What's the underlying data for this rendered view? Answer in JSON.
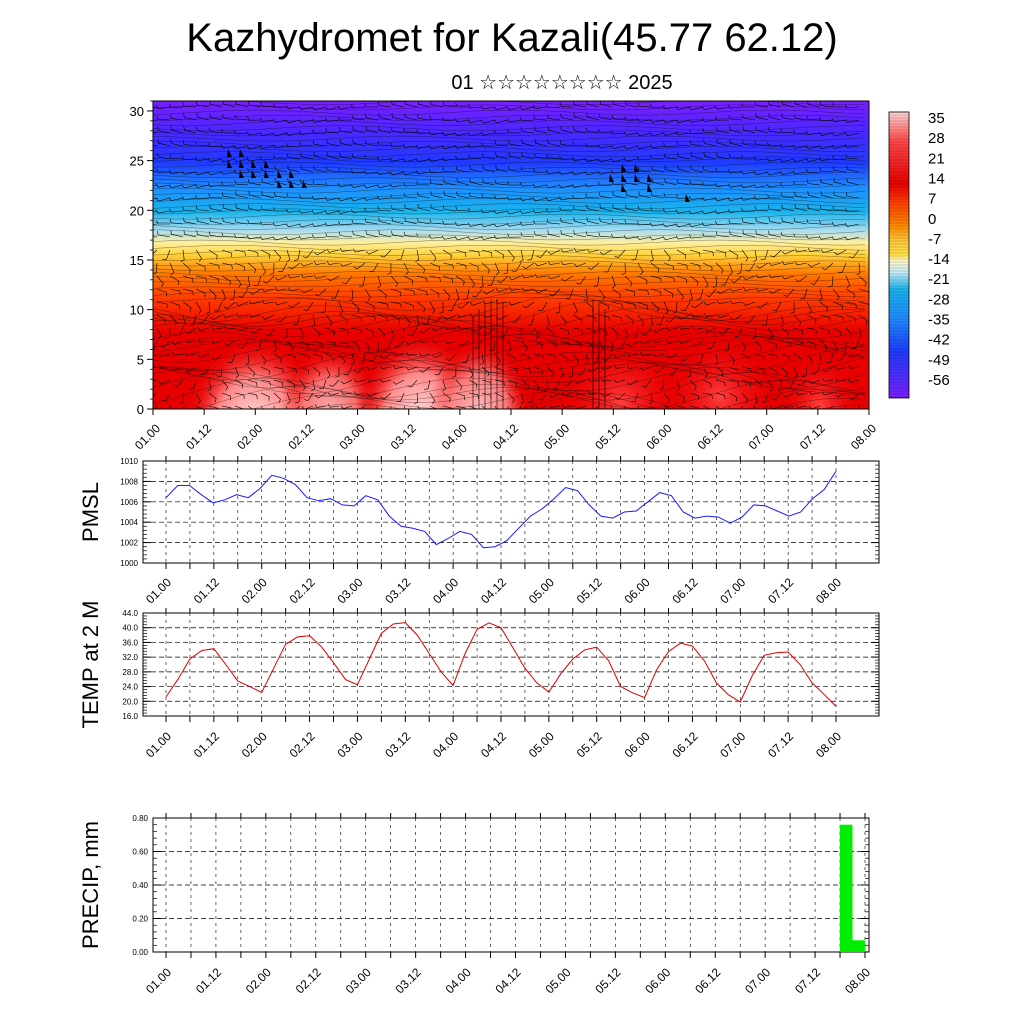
{
  "title": "Kazhydromet for Kazali(45.77 62.12)",
  "subtitle": "01 ☆☆☆☆☆☆☆☆ 2025",
  "time_labels": [
    "01.00",
    "01.12",
    "02.00",
    "02.12",
    "03.00",
    "03.12",
    "04.00",
    "04.12",
    "05.00",
    "05.12",
    "06.00",
    "06.12",
    "07.00",
    "07.12",
    "08.00"
  ],
  "chart_data": [
    {
      "type": "heatmap",
      "name": "vertical cross-section",
      "ylim": [
        0,
        31
      ],
      "y_ticks": [
        "0",
        "5",
        "10",
        "15",
        "20",
        "25",
        "30"
      ],
      "colorbar_labels": [
        "35",
        "28",
        "21",
        "14",
        "7",
        "0",
        "-7",
        "-14",
        "-21",
        "-28",
        "-35",
        "-42",
        "-49",
        "-56"
      ],
      "colors": {
        "hot": "#ffd6d6",
        "red": "#e80000",
        "orange": "#ff6a00",
        "yellow": "#ffe34a",
        "lightblue": "#a9dcf0",
        "cyan": "#19b4ec",
        "blue": "#1f3bff",
        "violet": "#7a1fff"
      }
    },
    {
      "type": "line",
      "ylabel": "PMSL",
      "ylim": [
        1000,
        1010
      ],
      "y_ticks": [
        "1010",
        "1008",
        "1006",
        "1004",
        "1002",
        "1000"
      ],
      "color": "#1a1aff",
      "values": [
        1006.4,
        1007.6,
        1007.6,
        1006.7,
        1005.9,
        1006.2,
        1006.7,
        1006.4,
        1007.3,
        1008.6,
        1008.3,
        1007.7,
        1006.4,
        1006.1,
        1006.3,
        1005.7,
        1005.6,
        1006.6,
        1006.2,
        1004.6,
        1003.6,
        1003.4,
        1003.1,
        1001.8,
        1002.4,
        1003.1,
        1002.8,
        1001.5,
        1001.6,
        1002.2,
        1003.4,
        1004.6,
        1005.3,
        1006.3,
        1007.4,
        1007.1,
        1005.7,
        1004.6,
        1004.4,
        1005.0,
        1005.1,
        1006.0,
        1006.9,
        1006.6,
        1005.0,
        1004.4,
        1004.6,
        1004.5,
        1003.9,
        1004.5,
        1005.7,
        1005.6,
        1005.1,
        1004.6,
        1005.0,
        1006.3,
        1007.2,
        1009.0
      ]
    },
    {
      "type": "line",
      "ylabel": "TEMP at 2 M",
      "ylim": [
        16,
        44
      ],
      "y_ticks": [
        "44.0",
        "40.0",
        "36.0",
        "32.0",
        "28.0",
        "24.0",
        "20.0",
        "16.0"
      ],
      "color": "#e00000",
      "values": [
        21.2,
        26.0,
        31.5,
        33.8,
        34.3,
        30.0,
        25.5,
        24.0,
        22.4,
        29.0,
        35.5,
        37.5,
        37.8,
        34.8,
        30.5,
        25.9,
        24.5,
        31.5,
        38.5,
        41.0,
        41.4,
        38.0,
        33.0,
        28.0,
        24.3,
        33.0,
        39.6,
        41.3,
        40.0,
        34.5,
        29.0,
        25.0,
        22.5,
        27.5,
        31.5,
        34.0,
        34.7,
        31.0,
        24.0,
        22.3,
        21.0,
        28.5,
        33.5,
        35.8,
        35.0,
        31.0,
        25.0,
        21.8,
        19.8,
        27.0,
        32.5,
        33.2,
        33.4,
        30.0,
        25.0,
        21.9,
        18.6
      ]
    },
    {
      "type": "bar",
      "ylabel": "PRECIP, mm",
      "ylim": [
        0,
        0.8
      ],
      "y_ticks": [
        "0.80",
        "0.60",
        "0.40",
        "0.20",
        "0.00"
      ],
      "color": "#00ee00",
      "bars": [
        {
          "start": 6.75,
          "end": 6.875,
          "value": 0.76
        },
        {
          "start": 6.875,
          "end": 7.0,
          "value": 0.07
        }
      ]
    }
  ]
}
